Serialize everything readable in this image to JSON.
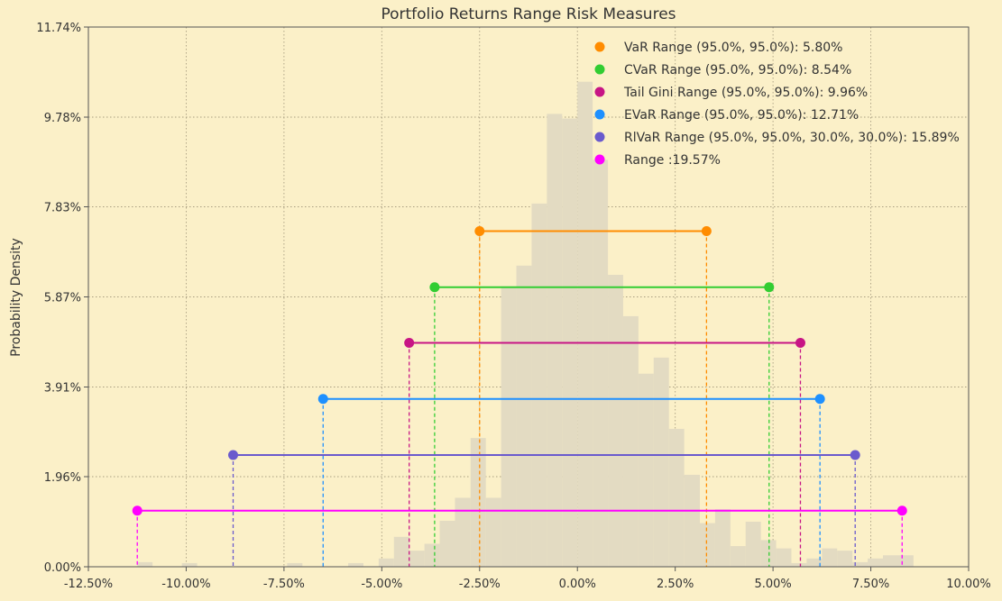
{
  "chart_data": {
    "type": "histogram",
    "title": "Portfolio Returns Range Risk Measures",
    "xlabel": "",
    "ylabel": "Probability Density",
    "xlim": [
      -0.125,
      0.1
    ],
    "ylim": [
      0,
      0.1174
    ],
    "x_ticks": [
      -0.125,
      -0.1,
      -0.075,
      -0.05,
      -0.025,
      0.0,
      0.025,
      0.05,
      0.075,
      0.1
    ],
    "x_tick_labels": [
      "-12.50%",
      "-10.00%",
      "-7.50%",
      "-5.00%",
      "-2.50%",
      "0.00%",
      "2.50%",
      "5.00%",
      "7.50%",
      "10.00%"
    ],
    "y_ticks": [
      0,
      0.0196,
      0.0391,
      0.0587,
      0.0783,
      0.0978,
      0.1174
    ],
    "y_tick_labels": [
      "0.00%",
      "1.96%",
      "3.91%",
      "5.87%",
      "7.83%",
      "9.78%",
      "11.74%"
    ],
    "grid": true,
    "legend_position": "top-right",
    "histogram": {
      "color": "#E3DBC2",
      "bins": [
        {
          "x0": -0.1125,
          "x1": -0.1086,
          "y": 0.001
        },
        {
          "x0": -0.1011,
          "x1": -0.0972,
          "y": 0.0008
        },
        {
          "x0": -0.0742,
          "x1": -0.0703,
          "y": 0.0008
        },
        {
          "x0": -0.0586,
          "x1": -0.0547,
          "y": 0.0008
        },
        {
          "x0": -0.0508,
          "x1": -0.0469,
          "y": 0.0018
        },
        {
          "x0": -0.0469,
          "x1": -0.043,
          "y": 0.0065
        },
        {
          "x0": -0.043,
          "x1": -0.0391,
          "y": 0.0035
        },
        {
          "x0": -0.0391,
          "x1": -0.0352,
          "y": 0.005
        },
        {
          "x0": -0.0352,
          "x1": -0.0313,
          "y": 0.01
        },
        {
          "x0": -0.0313,
          "x1": -0.0273,
          "y": 0.015
        },
        {
          "x0": -0.0273,
          "x1": -0.0234,
          "y": 0.028
        },
        {
          "x0": -0.0234,
          "x1": -0.0195,
          "y": 0.015
        },
        {
          "x0": -0.0195,
          "x1": -0.0156,
          "y": 0.061
        },
        {
          "x0": -0.0156,
          "x1": -0.0117,
          "y": 0.0655
        },
        {
          "x0": -0.0117,
          "x1": -0.0078,
          "y": 0.079
        },
        {
          "x0": -0.0078,
          "x1": -0.0039,
          "y": 0.0985
        },
        {
          "x0": -0.0039,
          "x1": 0.0,
          "y": 0.0975
        },
        {
          "x0": 0.0,
          "x1": 0.0039,
          "y": 0.1055
        },
        {
          "x0": 0.0039,
          "x1": 0.0078,
          "y": 0.0885
        },
        {
          "x0": 0.0078,
          "x1": 0.0117,
          "y": 0.0635
        },
        {
          "x0": 0.0117,
          "x1": 0.0156,
          "y": 0.0545
        },
        {
          "x0": 0.0156,
          "x1": 0.0195,
          "y": 0.042
        },
        {
          "x0": 0.0195,
          "x1": 0.0234,
          "y": 0.0455
        },
        {
          "x0": 0.0234,
          "x1": 0.0273,
          "y": 0.03
        },
        {
          "x0": 0.0273,
          "x1": 0.0313,
          "y": 0.02
        },
        {
          "x0": 0.0313,
          "x1": 0.0352,
          "y": 0.0095
        },
        {
          "x0": 0.0352,
          "x1": 0.0391,
          "y": 0.0125
        },
        {
          "x0": 0.0391,
          "x1": 0.043,
          "y": 0.0045
        },
        {
          "x0": 0.043,
          "x1": 0.0469,
          "y": 0.0098
        },
        {
          "x0": 0.0469,
          "x1": 0.0508,
          "y": 0.0058
        },
        {
          "x0": 0.0508,
          "x1": 0.0547,
          "y": 0.004
        },
        {
          "x0": 0.0547,
          "x1": 0.0586,
          "y": 0.0008
        },
        {
          "x0": 0.0586,
          "x1": 0.0625,
          "y": 0.0018
        },
        {
          "x0": 0.0625,
          "x1": 0.0664,
          "y": 0.004
        },
        {
          "x0": 0.0664,
          "x1": 0.0703,
          "y": 0.0035
        },
        {
          "x0": 0.0703,
          "x1": 0.0742,
          "y": 0.001
        },
        {
          "x0": 0.0742,
          "x1": 0.0781,
          "y": 0.0018
        },
        {
          "x0": 0.0781,
          "x1": 0.0859,
          "y": 0.0025
        }
      ]
    },
    "series": [
      {
        "name": "VaR Range (95.0%, 95.0%): 5.80%",
        "color": "#FF8C00",
        "x_low": -0.025,
        "x_high": 0.033,
        "y": 0.073
      },
      {
        "name": "CVaR Range (95.0%, 95.0%): 8.54%",
        "color": "#32CD32",
        "x_low": -0.0365,
        "x_high": 0.049,
        "y": 0.0608
      },
      {
        "name": "Tail Gini Range (95.0%, 95.0%): 9.96%",
        "color": "#C71585",
        "x_low": -0.043,
        "x_high": 0.057,
        "y": 0.0487
      },
      {
        "name": "EVaR Range (95.0%, 95.0%): 12.71%",
        "color": "#1E90FF",
        "x_low": -0.065,
        "x_high": 0.062,
        "y": 0.0365
      },
      {
        "name": "RlVaR Range (95.0%, 95.0%, 30.0%, 30.0%): 15.89%",
        "color": "#6A5ACD",
        "x_low": -0.088,
        "x_high": 0.071,
        "y": 0.0243
      },
      {
        "name": "Range :19.57%",
        "color": "#FF00FF",
        "x_low": -0.1125,
        "x_high": 0.083,
        "y": 0.0122
      }
    ]
  }
}
